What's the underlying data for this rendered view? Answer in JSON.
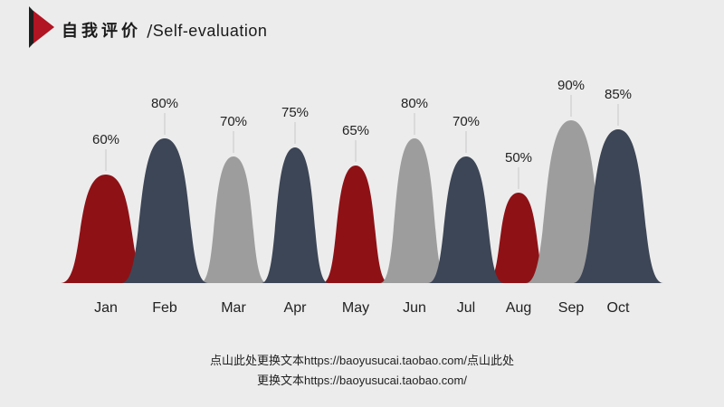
{
  "header": {
    "title_cn": "自我评价",
    "title_sep": " /",
    "title_en": "Self-evaluation"
  },
  "chart_data": {
    "type": "area",
    "categories": [
      "Jan",
      "Feb",
      "Mar",
      "Apr",
      "May",
      "Jun",
      "Jul",
      "Aug",
      "Sep",
      "Oct"
    ],
    "values": [
      60,
      80,
      70,
      75,
      65,
      80,
      70,
      50,
      90,
      85
    ],
    "labels": [
      "60%",
      "80%",
      "70%",
      "75%",
      "65%",
      "80%",
      "70%",
      "50%",
      "90%",
      "85%"
    ],
    "colors": [
      "#8e1116",
      "#3d4656",
      "#9d9d9d",
      "#3d4656",
      "#8e1116",
      "#9d9d9d",
      "#3d4656",
      "#8e1116",
      "#9d9d9d",
      "#3d4656"
    ],
    "ylim": [
      0,
      100
    ],
    "grid": false,
    "legend": "none"
  },
  "footer": {
    "line1": "点山此处更换文本https://baoyusucai.taobao.com/点山此处",
    "line2": "更换文本https://baoyusucai.taobao.com/"
  },
  "theme": {
    "accent_red": "#9b111e",
    "dark": "#3d4656",
    "grey": "#9d9d9d"
  }
}
